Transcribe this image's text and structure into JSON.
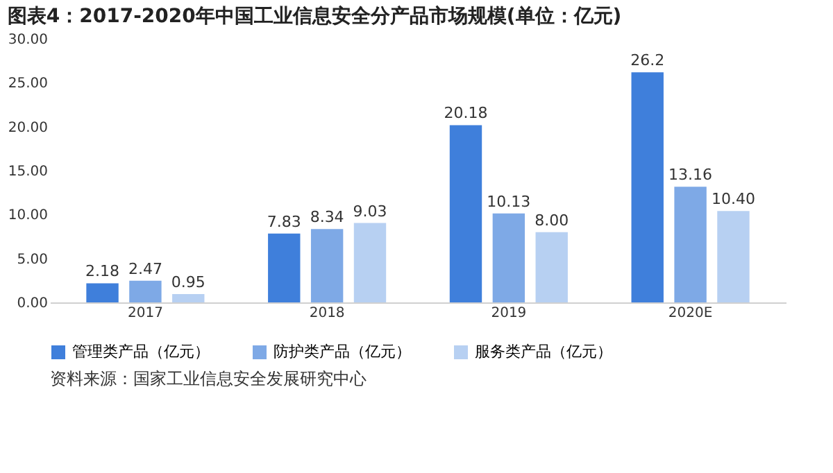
{
  "chart_data": {
    "type": "bar",
    "title": "图表4：2017-2020年中国工业信息安全分产品市场规模(单位：亿元)",
    "categories": [
      "2017",
      "2018",
      "2019",
      "2020E"
    ],
    "series": [
      {
        "name": "管理类产品（亿元）",
        "color": "#3f7fdb",
        "values": [
          2.18,
          7.83,
          20.18,
          26.2
        ],
        "value_labels": [
          "2.18",
          "7.83",
          "20.18",
          "26.2"
        ]
      },
      {
        "name": "防护类产品（亿元）",
        "color": "#7ea9e6",
        "values": [
          2.47,
          8.34,
          10.13,
          13.16
        ],
        "value_labels": [
          "2.47",
          "8.34",
          "10.13",
          "13.16"
        ]
      },
      {
        "name": "服务类产品（亿元）",
        "color": "#b7d0f2",
        "values": [
          0.95,
          9.03,
          8.0,
          10.4
        ],
        "value_labels": [
          "0.95",
          "9.03",
          "8.00",
          "10.40"
        ]
      }
    ],
    "ylim": [
      0,
      30
    ],
    "yticks": [
      {
        "value": 0,
        "label": "0.00"
      },
      {
        "value": 5,
        "label": "5.00"
      },
      {
        "value": 10,
        "label": "10.00"
      },
      {
        "value": 15,
        "label": "15.00"
      },
      {
        "value": 20,
        "label": "20.00"
      },
      {
        "value": 25,
        "label": "25.00"
      },
      {
        "value": 30,
        "label": "30.00"
      }
    ],
    "grid": false,
    "legend": "bottom",
    "annotations": [
      "资料来源：国家工业信息安全发展研究中心"
    ]
  }
}
